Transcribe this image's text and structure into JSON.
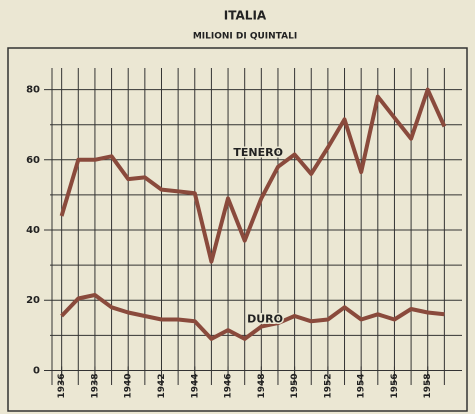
{
  "chart_data": {
    "type": "line",
    "title": "ITALIA",
    "subtitle": "MILIONI DI QUINTALI",
    "x": [
      1936,
      1937,
      1938,
      1939,
      1940,
      1941,
      1942,
      1943,
      1944,
      1945,
      1946,
      1947,
      1948,
      1949,
      1950,
      1951,
      1952,
      1953,
      1954,
      1955,
      1956,
      1957,
      1958,
      1959
    ],
    "series": [
      {
        "name": "TENERO",
        "color": "#8a4a3c",
        "values": [
          44,
          60,
          60,
          61,
          54.5,
          55,
          51.5,
          51,
          50.5,
          31,
          49,
          37,
          49,
          58,
          61.5,
          56,
          63.5,
          71.5,
          56.5,
          78,
          72,
          66,
          80,
          69.5
        ]
      },
      {
        "name": "DURO",
        "color": "#8a4a3c",
        "values": [
          15.5,
          20.5,
          21.5,
          18,
          16.5,
          15.5,
          14.5,
          14.5,
          14,
          9,
          11.5,
          9,
          12.5,
          13.5,
          15.5,
          14,
          14.5,
          18,
          14.5,
          16,
          14.5,
          17.5,
          16.5,
          16
        ]
      }
    ],
    "xlim": [
      1935.3,
      1960.3
    ],
    "xticks": [
      1936,
      1938,
      1940,
      1942,
      1944,
      1946,
      1948,
      1950,
      1952,
      1954,
      1956,
      1958
    ],
    "ylim": [
      -5,
      89
    ],
    "yticks": [
      0,
      20,
      40,
      60,
      80
    ],
    "grid": true
  }
}
